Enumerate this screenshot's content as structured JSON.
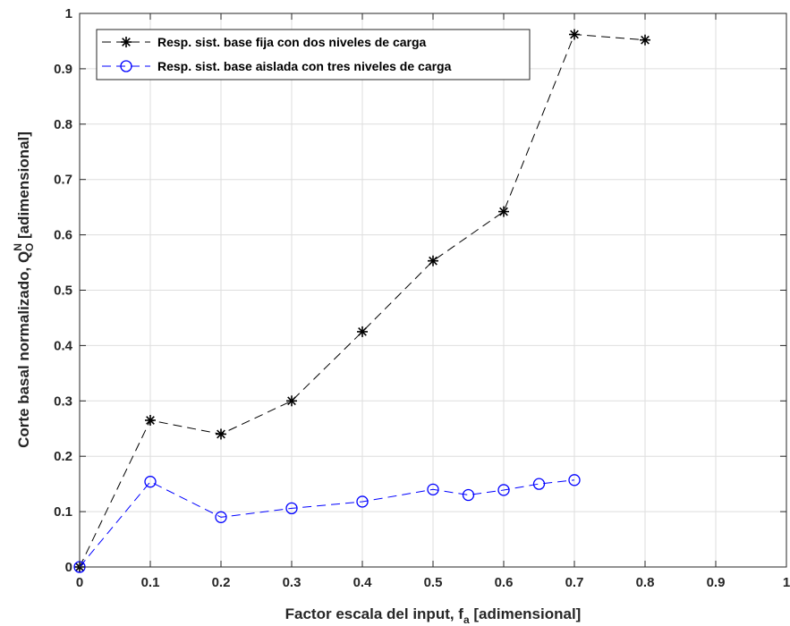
{
  "chart_data": {
    "type": "line",
    "xlabel": {
      "main": "Factor escala del input, f",
      "sub": "a",
      "tail": " [adimensional]"
    },
    "ylabel": {
      "main": "Corte basal normalizado, Q",
      "sub": "O",
      "sup": "N",
      "tail": " [adimensional]"
    },
    "xlim": [
      0,
      1
    ],
    "ylim": [
      0,
      1
    ],
    "xticks": [
      0,
      0.1,
      0.2,
      0.3,
      0.4,
      0.5,
      0.6,
      0.7,
      0.8,
      0.9,
      1
    ],
    "xtick_labels": [
      "0",
      "0.1",
      "0.2",
      "0.3",
      "0.4",
      "0.5",
      "0.6",
      "0.7",
      "0.8",
      "0.9",
      "1"
    ],
    "yticks": [
      0,
      0.1,
      0.2,
      0.3,
      0.4,
      0.5,
      0.6,
      0.7,
      0.8,
      0.9,
      1
    ],
    "ytick_labels": [
      "0",
      "0.1",
      "0.2",
      "0.3",
      "0.4",
      "0.5",
      "0.6",
      "0.7",
      "0.8",
      "0.9",
      "1"
    ],
    "grid": true,
    "legend_position": "top-left",
    "series": [
      {
        "name": "Resp. sist. base fija con dos niveles de carga",
        "color": "#000000",
        "marker": "asterisk",
        "line": "dashed",
        "x": [
          0,
          0.1,
          0.2,
          0.3,
          0.4,
          0.5,
          0.6,
          0.7,
          0.8
        ],
        "y": [
          0,
          0.265,
          0.24,
          0.3,
          0.425,
          0.553,
          0.642,
          0.962,
          0.952
        ]
      },
      {
        "name": "Resp. sist. base aislada con tres niveles de carga",
        "color": "#0000ff",
        "marker": "circle",
        "line": "dashed",
        "x": [
          0,
          0.1,
          0.2,
          0.3,
          0.4,
          0.5,
          0.55,
          0.6,
          0.65,
          0.7
        ],
        "y": [
          0,
          0.154,
          0.09,
          0.106,
          0.118,
          0.14,
          0.13,
          0.139,
          0.15,
          0.157
        ]
      }
    ]
  }
}
